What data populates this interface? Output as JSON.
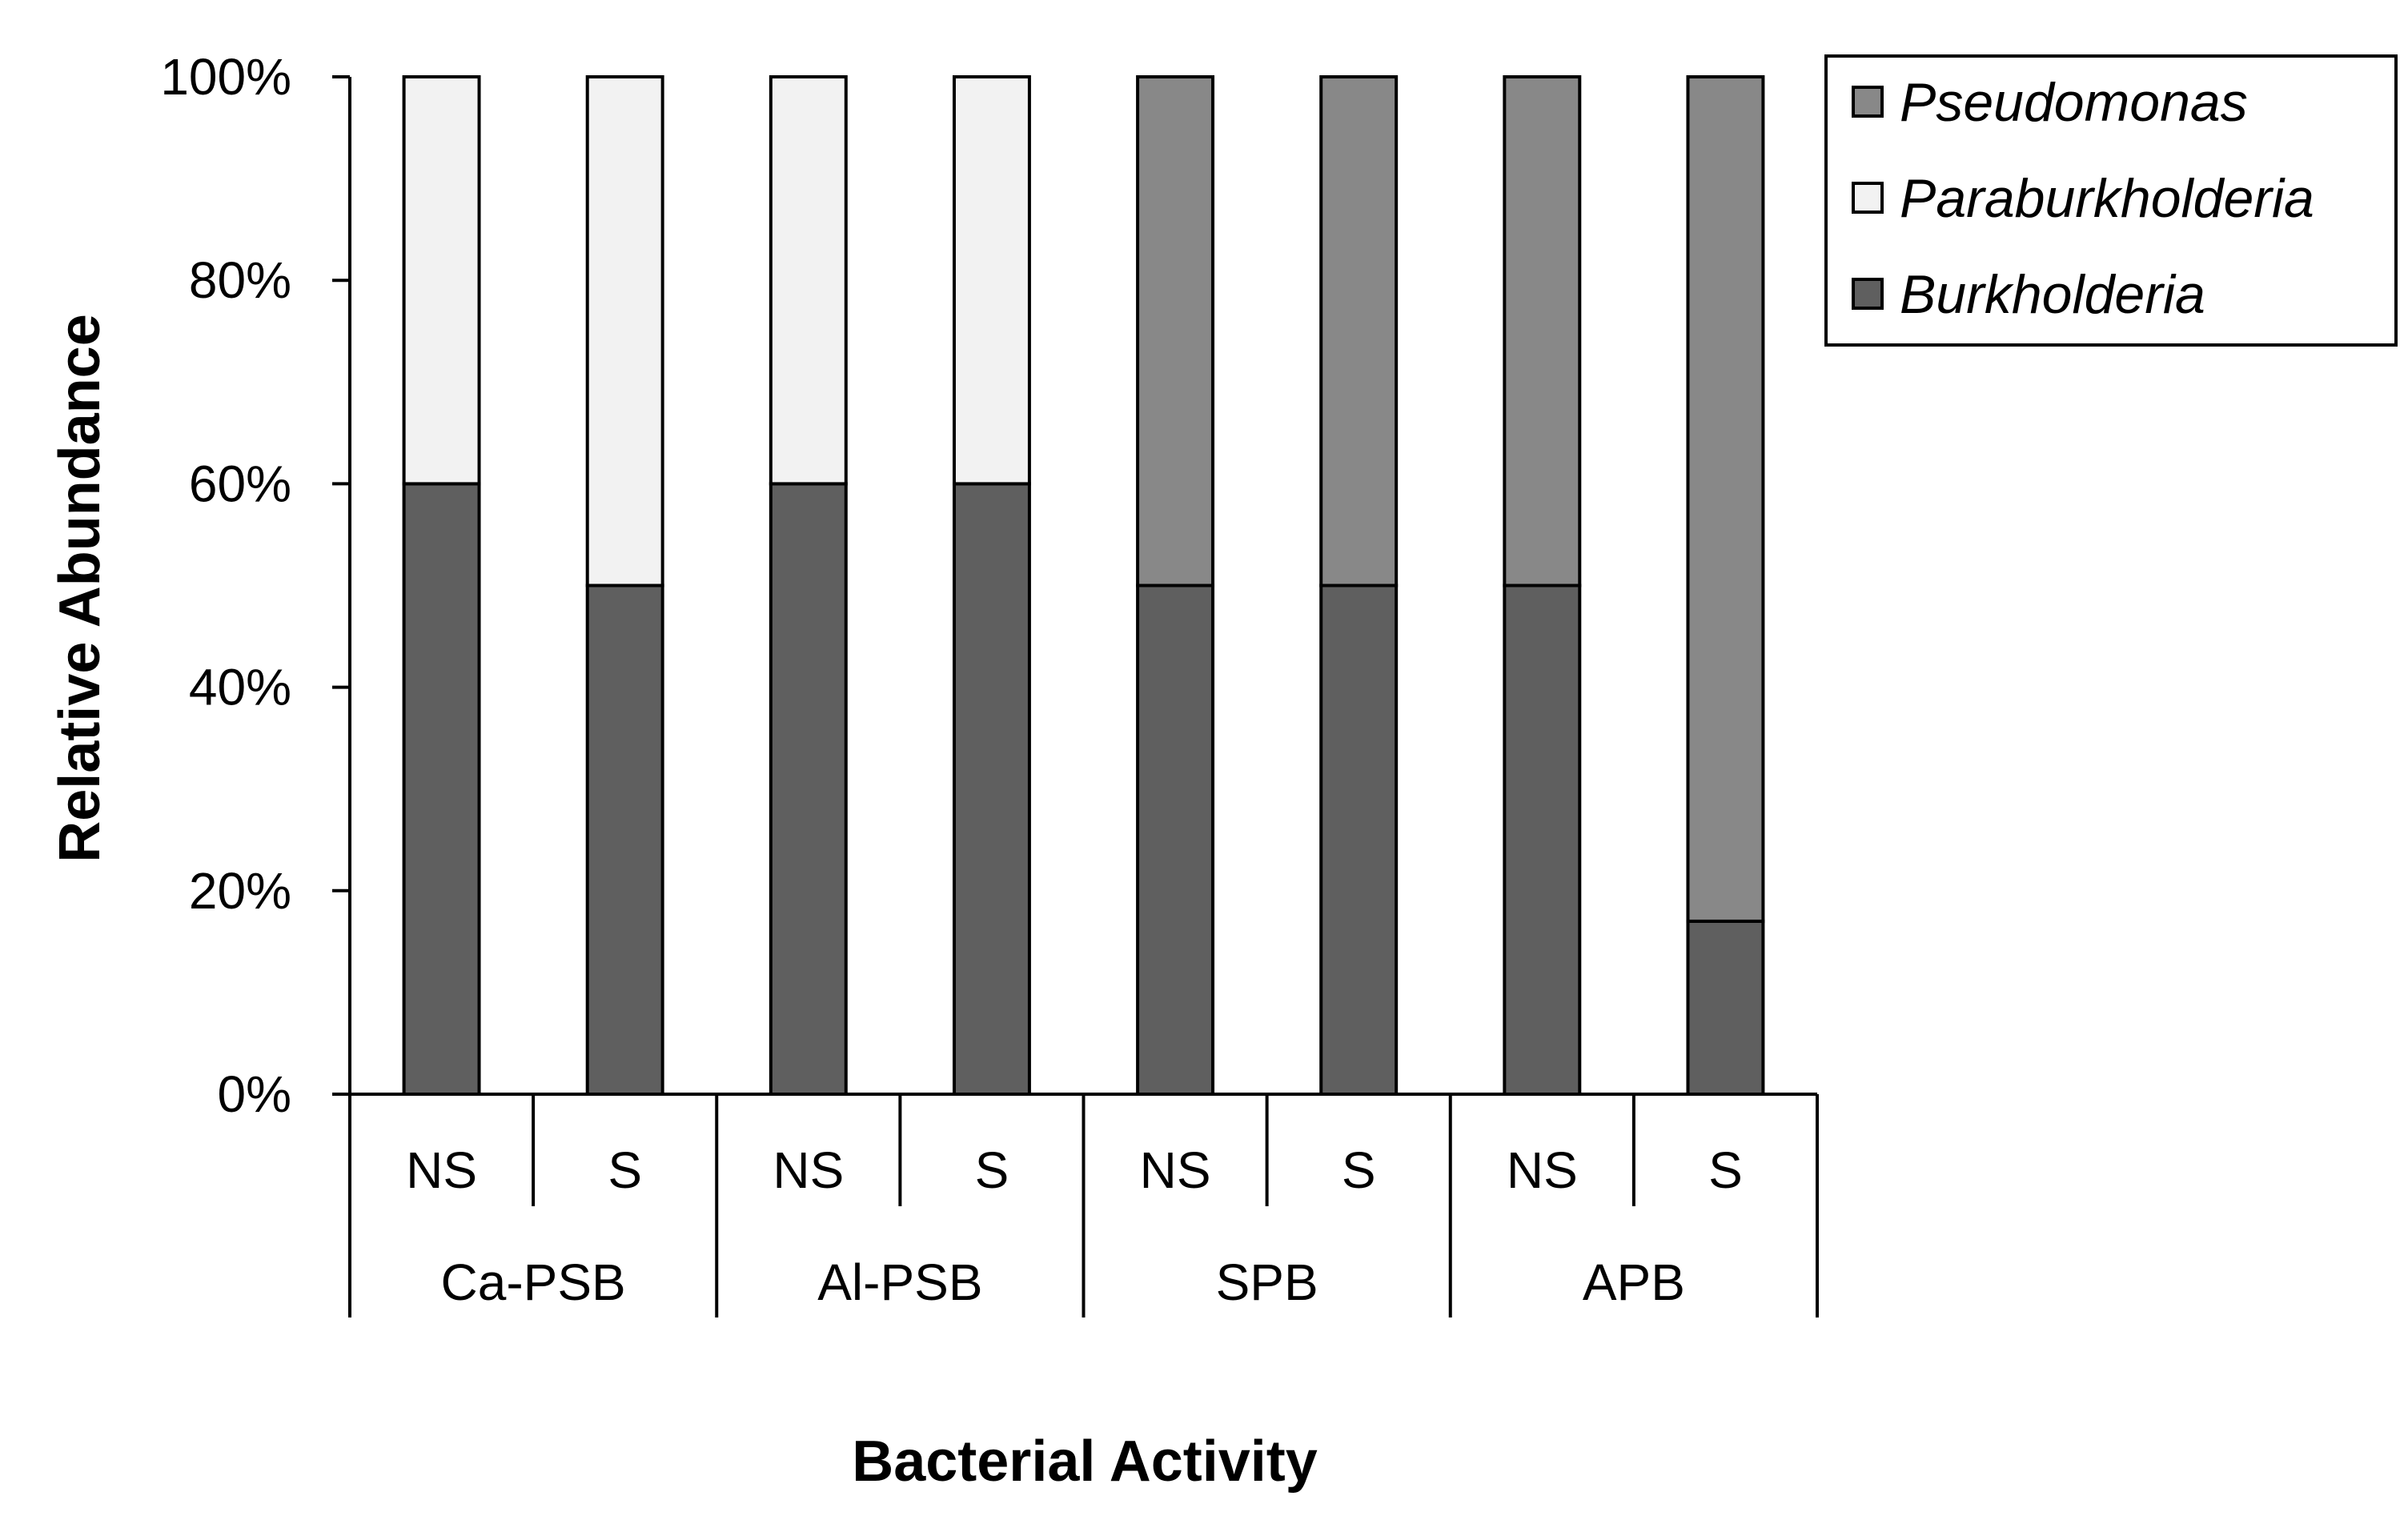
{
  "chart_data": {
    "type": "bar",
    "stacked": true,
    "ylabel": "Relative Abundance",
    "xlabel": "Bacterial Activity",
    "ylim": [
      0,
      100
    ],
    "yticks": [
      "0%",
      "20%",
      "40%",
      "60%",
      "80%",
      "100%"
    ],
    "ytick_values": [
      0,
      20,
      40,
      60,
      80,
      100
    ],
    "groups": [
      {
        "label": "Ca-PSB",
        "subcategories": [
          "NS",
          "S"
        ]
      },
      {
        "label": "Al-PSB",
        "subcategories": [
          "NS",
          "S"
        ]
      },
      {
        "label": "SPB",
        "subcategories": [
          "NS",
          "S"
        ]
      },
      {
        "label": "APB",
        "subcategories": [
          "NS",
          "S"
        ]
      }
    ],
    "series": [
      {
        "name": "Burkholderia",
        "color": "#5f5f5f",
        "values": [
          60,
          50,
          60,
          60,
          50,
          50,
          50,
          17
        ]
      },
      {
        "name": "Paraburkholderia",
        "color": "#f2f2f2",
        "values": [
          40,
          50,
          40,
          40,
          0,
          0,
          0,
          0
        ]
      },
      {
        "name": "Pseudomonas",
        "color": "#888888",
        "values": [
          0,
          0,
          0,
          0,
          50,
          50,
          50,
          83
        ]
      }
    ],
    "legend": {
      "position": "top-right",
      "order": [
        "Pseudomonas",
        "Paraburkholderia",
        "Burkholderia"
      ]
    }
  }
}
